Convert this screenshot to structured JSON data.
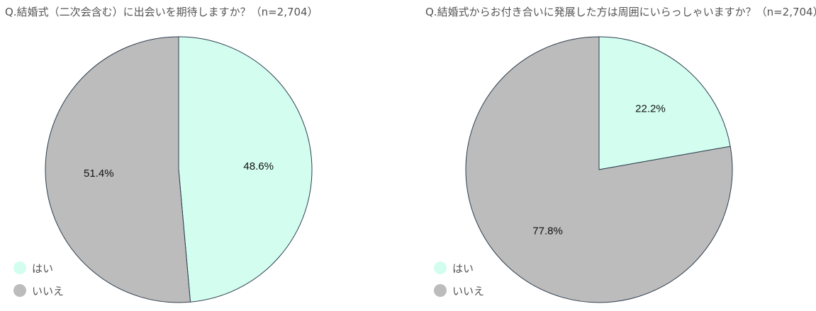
{
  "chart_data": [
    {
      "type": "pie",
      "title": "Q.結婚式（二次会含む）に出会いを期待しますか？（n=2,704）",
      "categories": [
        "はい",
        "いいえ"
      ],
      "values": [
        48.6,
        51.4
      ],
      "value_labels": [
        "48.6%",
        "51.4%"
      ],
      "colors": [
        "#d2fdef",
        "#bcbcbc"
      ],
      "stroke_color": "#2e3e4e",
      "legend": {
        "placement": "bottom-left",
        "items": [
          {
            "label": "はい",
            "color": "#d2fdef"
          },
          {
            "label": "いいえ",
            "color": "#bcbcbc"
          }
        ]
      }
    },
    {
      "type": "pie",
      "title": "Q.結婚式からお付き合いに発展した方は周囲にいらっしゃいますか？（n=2,704）",
      "categories": [
        "はい",
        "いいえ"
      ],
      "values": [
        22.2,
        77.8
      ],
      "value_labels": [
        "22.2%",
        "77.8%"
      ],
      "colors": [
        "#d2fdef",
        "#bcbcbc"
      ],
      "stroke_color": "#2e3e4e",
      "legend": {
        "placement": "bottom-left",
        "items": [
          {
            "label": "はい",
            "color": "#d2fdef"
          },
          {
            "label": "いいえ",
            "color": "#bcbcbc"
          }
        ]
      }
    }
  ]
}
